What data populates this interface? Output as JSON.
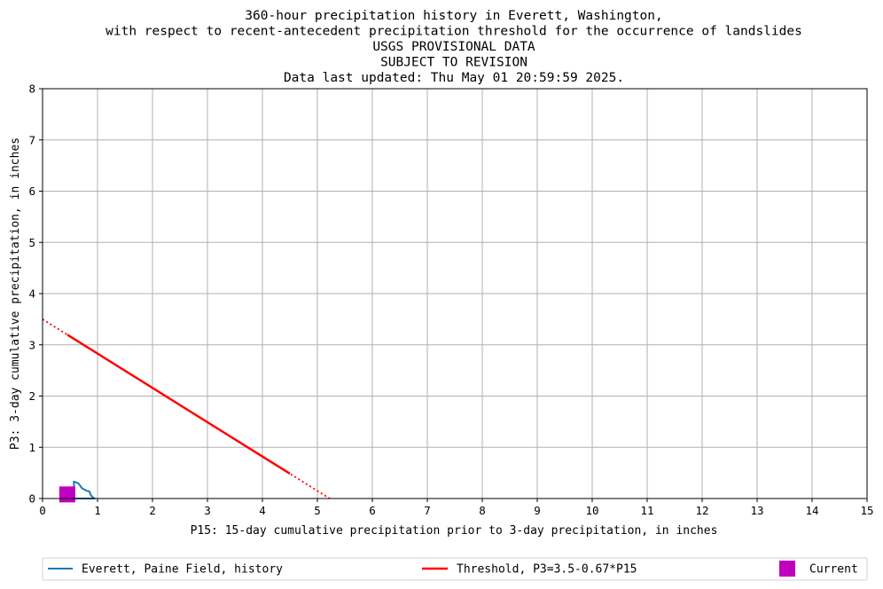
{
  "chart_data": {
    "type": "line",
    "title_lines": [
      "360-hour precipitation history in Everett, Washington,",
      "with respect to recent-antecedent precipitation threshold for the occurrence of landslides",
      "USGS PROVISIONAL DATA",
      "SUBJECT TO REVISION",
      "Data last updated: Thu May 01 20:59:59 2025."
    ],
    "xlabel": "P15: 15-day cumulative precipitation prior to 3-day precipitation, in inches",
    "ylabel": "P3: 3-day cumulative precipitation, in inches",
    "xlim": [
      0,
      15
    ],
    "ylim": [
      0,
      8
    ],
    "xticks": [
      "0",
      "1",
      "2",
      "3",
      "4",
      "5",
      "6",
      "7",
      "8",
      "9",
      "10",
      "11",
      "12",
      "13",
      "14",
      "15"
    ],
    "yticks": [
      "0",
      "1",
      "2",
      "3",
      "4",
      "5",
      "6",
      "7",
      "8"
    ],
    "grid": true,
    "legend_position": "bottom",
    "series": [
      {
        "name": "Everett, Paine Field, history",
        "color": "#1f77b4",
        "style": "line",
        "points": [
          [
            0.38,
            0.0
          ],
          [
            0.45,
            0.0
          ],
          [
            0.55,
            0.0
          ],
          [
            0.58,
            0.02
          ],
          [
            0.57,
            0.33
          ],
          [
            0.65,
            0.3
          ],
          [
            0.72,
            0.2
          ],
          [
            0.8,
            0.15
          ],
          [
            0.85,
            0.14
          ],
          [
            0.88,
            0.06
          ],
          [
            0.92,
            0.02
          ],
          [
            0.95,
            0.0
          ],
          [
            0.9,
            0.0
          ],
          [
            0.7,
            0.0
          ],
          [
            0.5,
            0.0
          ]
        ]
      },
      {
        "name": "Threshold, P3=3.5-0.67*P15",
        "color": "#ff0000",
        "style": "line",
        "solid_range": [
          0.45,
          4.5
        ],
        "points": [
          [
            0,
            3.5
          ],
          [
            5.2239,
            0
          ]
        ]
      },
      {
        "name": "Current",
        "color": "#bf00bf",
        "style": "marker",
        "points": [
          [
            0.45,
            0.08
          ]
        ]
      }
    ]
  }
}
